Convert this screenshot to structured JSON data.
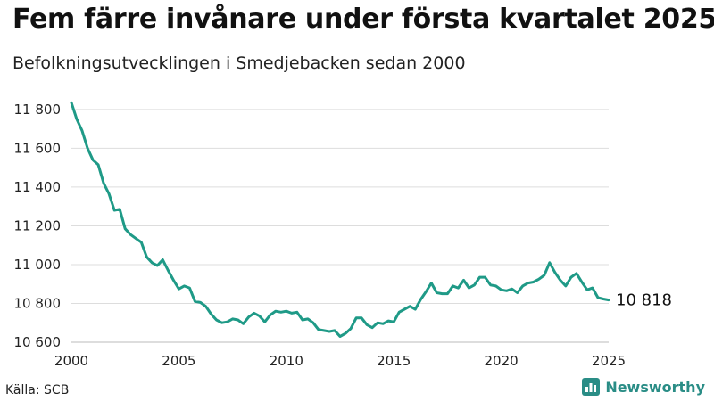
{
  "header": {
    "title": "Fem färre invånare under första kvartalet 2025",
    "subtitle": "Befolkningsutvecklingen i Smedjebacken sedan 2000"
  },
  "footer": {
    "source": "Källa: SCB",
    "brand": "Newsworthy"
  },
  "colors": {
    "line": "#1f9a87",
    "grid": "#dddddd",
    "brand": "#2a8d86"
  },
  "chart_data": {
    "type": "line",
    "title": "Fem färre invånare under första kvartalet 2025",
    "subtitle": "Befolkningsutvecklingen i Smedjebacken sedan 2000",
    "xlabel": "",
    "ylabel": "",
    "xlim": [
      2000,
      2025
    ],
    "ylim": [
      10600,
      11850
    ],
    "yticks": [
      10600,
      10800,
      11000,
      11200,
      11400,
      11600,
      11800
    ],
    "ytick_labels": [
      "10 600",
      "10 800",
      "11 000",
      "11 200",
      "11 400",
      "11 600",
      "11 800"
    ],
    "xticks": [
      2000,
      2005,
      2010,
      2015,
      2020,
      2025
    ],
    "xtick_labels": [
      "2000",
      "2005",
      "2010",
      "2015",
      "2020",
      "2025"
    ],
    "grid": true,
    "end_label": "10 818",
    "series": [
      {
        "x": [
          2000.0,
          2000.25,
          2000.5,
          2000.75,
          2001.0,
          2001.25,
          2001.5,
          2001.75,
          2002.0,
          2002.25,
          2002.5,
          2002.75,
          2003.0,
          2003.25,
          2003.5,
          2003.75,
          2004.0,
          2004.25,
          2004.5,
          2004.75,
          2005.0,
          2005.25,
          2005.5,
          2005.75,
          2006.0,
          2006.25,
          2006.5,
          2006.75,
          2007.0,
          2007.25,
          2007.5,
          2007.75,
          2008.0,
          2008.25,
          2008.5,
          2008.75,
          2009.0,
          2009.25,
          2009.5,
          2009.75,
          2010.0,
          2010.25,
          2010.5,
          2010.75,
          2011.0,
          2011.25,
          2011.5,
          2011.75,
          2012.0,
          2012.25,
          2012.5,
          2012.75,
          2013.0,
          2013.25,
          2013.5,
          2013.75,
          2014.0,
          2014.25,
          2014.5,
          2014.75,
          2015.0,
          2015.25,
          2015.5,
          2015.75,
          2016.0,
          2016.25,
          2016.5,
          2016.75,
          2017.0,
          2017.25,
          2017.5,
          2017.75,
          2018.0,
          2018.25,
          2018.5,
          2018.75,
          2019.0,
          2019.25,
          2019.5,
          2019.75,
          2020.0,
          2020.25,
          2020.5,
          2020.75,
          2021.0,
          2021.25,
          2021.5,
          2021.75,
          2022.0,
          2022.25,
          2022.5,
          2022.75,
          2023.0,
          2023.25,
          2023.5,
          2023.75,
          2024.0,
          2024.25,
          2024.5,
          2024.75,
          2025.0
        ],
        "values": [
          11835,
          11750,
          11690,
          11600,
          11540,
          11515,
          11420,
          11365,
          11280,
          11285,
          11185,
          11155,
          11135,
          11115,
          11040,
          11010,
          10995,
          11025,
          10970,
          10920,
          10875,
          10890,
          10880,
          10810,
          10805,
          10785,
          10745,
          10715,
          10700,
          10705,
          10720,
          10715,
          10695,
          10730,
          10750,
          10735,
          10705,
          10740,
          10760,
          10755,
          10760,
          10750,
          10755,
          10715,
          10720,
          10700,
          10665,
          10660,
          10655,
          10660,
          10630,
          10645,
          10670,
          10725,
          10725,
          10690,
          10675,
          10700,
          10695,
          10710,
          10705,
          10755,
          10770,
          10785,
          10770,
          10820,
          10860,
          10905,
          10855,
          10850,
          10850,
          10890,
          10880,
          10920,
          10880,
          10895,
          10935,
          10935,
          10895,
          10890,
          10870,
          10865,
          10875,
          10855,
          10890,
          10905,
          10910,
          10925,
          10945,
          11010,
          10960,
          10920,
          10890,
          10935,
          10955,
          10910,
          10870,
          10880,
          10830,
          10823,
          10818
        ]
      }
    ]
  }
}
